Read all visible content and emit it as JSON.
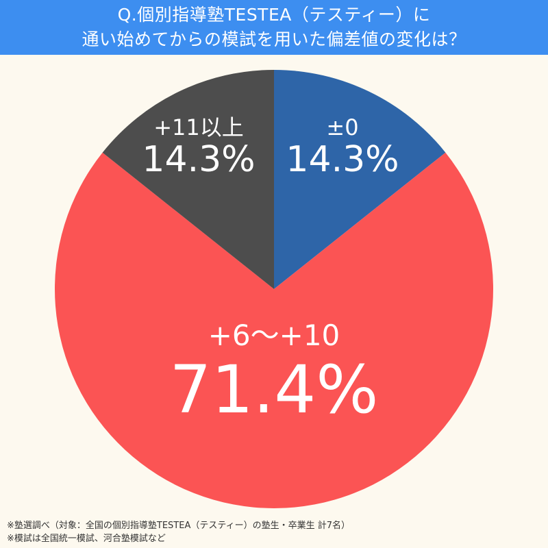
{
  "header": {
    "title_line1": "Q.個別指導塾TESTEA（テスティー）に",
    "title_line2": "通い始めてからの模試を用いた偏差値の変化は？",
    "background": "#3d8ef0"
  },
  "chart_data": {
    "type": "pie",
    "title": "Q.個別指導塾TESTEA（テスティー）に通い始めてからの模試を用いた偏差値の変化は？",
    "categories": [
      "±0",
      "+6〜+10",
      "+11以上"
    ],
    "values": [
      14.3,
      71.4,
      14.3
    ],
    "colors": [
      "#2e65a8",
      "#fb5454",
      "#4d4d4d"
    ],
    "start_angle_deg": 0,
    "direction": "clockwise",
    "legend": "none (labels inside slices)"
  },
  "slices": {
    "zero": {
      "category": "±0",
      "value": "14.3%",
      "color": "#2e65a8"
    },
    "mid": {
      "category": "+6〜+10",
      "value": "71.4%",
      "color": "#fb5454"
    },
    "high": {
      "category": "+11以上",
      "value": "14.3%",
      "color": "#4d4d4d"
    }
  },
  "footer": {
    "note1": "※塾選調べ（対象：全国の個別指導塾TESTEA（テスティー）の塾生・卒業生 計7名）",
    "note2": "※模試は全国統一模試、河合塾模試など"
  }
}
